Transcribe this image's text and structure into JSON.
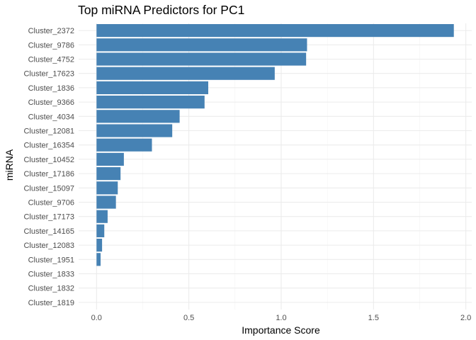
{
  "chart_data": {
    "type": "bar",
    "orientation": "horizontal",
    "title": "Top miRNA Predictors for PC1",
    "xlabel": "Importance Score",
    "ylabel": "miRNA",
    "categories": [
      "Cluster_2372",
      "Cluster_9786",
      "Cluster_4752",
      "Cluster_17623",
      "Cluster_1836",
      "Cluster_9366",
      "Cluster_4034",
      "Cluster_12081",
      "Cluster_16354",
      "Cluster_10452",
      "Cluster_17186",
      "Cluster_15097",
      "Cluster_9706",
      "Cluster_17173",
      "Cluster_14165",
      "Cluster_12083",
      "Cluster_1951",
      "Cluster_1833",
      "Cluster_1832",
      "Cluster_1819"
    ],
    "values": [
      1.935,
      1.14,
      1.135,
      0.965,
      0.605,
      0.585,
      0.45,
      0.41,
      0.3,
      0.148,
      0.13,
      0.115,
      0.105,
      0.06,
      0.042,
      0.03,
      0.022,
      0.0,
      0.0,
      0.0
    ],
    "xlim": [
      -0.097,
      2.032
    ],
    "xticks": [
      0.0,
      0.5,
      1.0,
      1.5,
      2.0
    ],
    "xtick_labels": [
      "0.0",
      "0.5",
      "1.0",
      "1.5",
      "2.0"
    ],
    "bar_color": "#4682B4",
    "grid": true,
    "legend": false
  }
}
